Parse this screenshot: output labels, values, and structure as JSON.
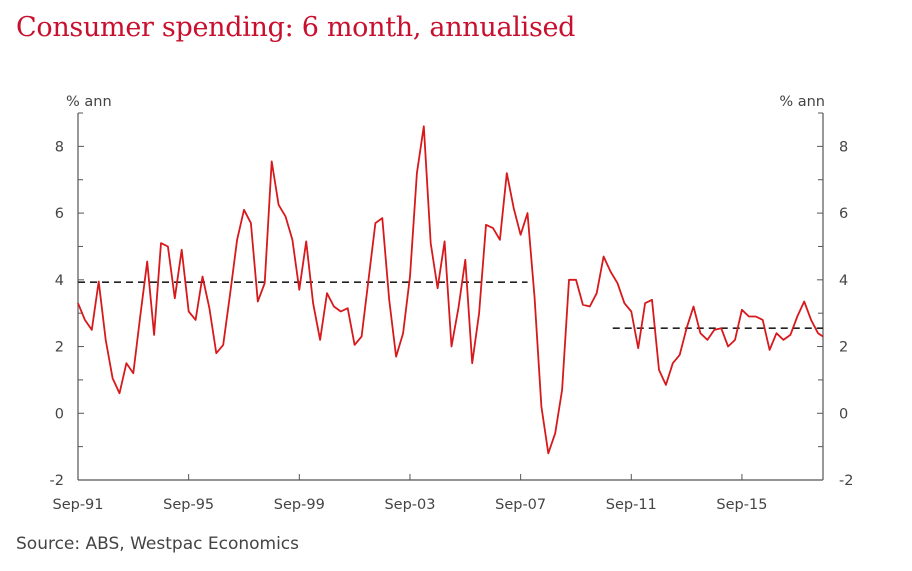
{
  "chart_data": {
    "type": "line",
    "title": "Consumer spending: 6 month, annualised",
    "source": "Source: ABS, Westpac Economics",
    "ylabel_left": "% ann",
    "ylabel_right": "% ann",
    "ylim": [
      -2,
      9
    ],
    "yticks": [
      -2,
      0,
      2,
      4,
      6,
      8
    ],
    "xlim": [
      1991.67,
      2018.6
    ],
    "xticks": [
      {
        "x": 1991.67,
        "label": "Sep-91"
      },
      {
        "x": 1995.67,
        "label": "Sep-95"
      },
      {
        "x": 1999.67,
        "label": "Sep-99"
      },
      {
        "x": 2003.67,
        "label": "Sep-03"
      },
      {
        "x": 2007.67,
        "label": "Sep-07"
      },
      {
        "x": 2011.67,
        "label": "Sep-11"
      },
      {
        "x": 2015.67,
        "label": "Sep-15"
      }
    ],
    "colors": {
      "title": "#c8102e",
      "series": "#d7191c",
      "average": "#222222",
      "axis": "#555555"
    },
    "series": [
      {
        "name": "Consumer spending",
        "points": [
          [
            1991.67,
            3.3
          ],
          [
            1991.92,
            2.8
          ],
          [
            1992.17,
            2.5
          ],
          [
            1992.42,
            3.95
          ],
          [
            1992.67,
            2.2
          ],
          [
            1992.92,
            1.05
          ],
          [
            1993.17,
            0.6
          ],
          [
            1993.42,
            1.5
          ],
          [
            1993.67,
            1.2
          ],
          [
            1993.92,
            2.9
          ],
          [
            1994.17,
            4.55
          ],
          [
            1994.42,
            2.35
          ],
          [
            1994.67,
            5.1
          ],
          [
            1994.92,
            5.0
          ],
          [
            1995.17,
            3.45
          ],
          [
            1995.42,
            4.9
          ],
          [
            1995.67,
            3.05
          ],
          [
            1995.92,
            2.8
          ],
          [
            1996.17,
            4.1
          ],
          [
            1996.42,
            3.15
          ],
          [
            1996.67,
            1.8
          ],
          [
            1996.92,
            2.05
          ],
          [
            1997.17,
            3.6
          ],
          [
            1997.42,
            5.2
          ],
          [
            1997.67,
            6.1
          ],
          [
            1997.92,
            5.7
          ],
          [
            1998.17,
            3.35
          ],
          [
            1998.42,
            3.9
          ],
          [
            1998.67,
            7.55
          ],
          [
            1998.92,
            6.25
          ],
          [
            1999.17,
            5.9
          ],
          [
            1999.42,
            5.2
          ],
          [
            1999.67,
            3.7
          ],
          [
            1999.92,
            5.15
          ],
          [
            2000.17,
            3.3
          ],
          [
            2000.42,
            2.2
          ],
          [
            2000.67,
            3.6
          ],
          [
            2000.92,
            3.2
          ],
          [
            2001.17,
            3.05
          ],
          [
            2001.42,
            3.15
          ],
          [
            2001.67,
            2.05
          ],
          [
            2001.92,
            2.3
          ],
          [
            2002.17,
            4.0
          ],
          [
            2002.42,
            5.7
          ],
          [
            2002.67,
            5.85
          ],
          [
            2002.92,
            3.4
          ],
          [
            2003.17,
            1.7
          ],
          [
            2003.42,
            2.4
          ],
          [
            2003.67,
            4.1
          ],
          [
            2003.92,
            7.2
          ],
          [
            2004.17,
            8.6
          ],
          [
            2004.42,
            5.1
          ],
          [
            2004.67,
            3.75
          ],
          [
            2004.92,
            5.15
          ],
          [
            2005.17,
            2.0
          ],
          [
            2005.42,
            3.15
          ],
          [
            2005.67,
            4.6
          ],
          [
            2005.92,
            1.5
          ],
          [
            2006.17,
            3.0
          ],
          [
            2006.42,
            5.65
          ],
          [
            2006.67,
            5.55
          ],
          [
            2006.92,
            5.2
          ],
          [
            2007.17,
            7.2
          ],
          [
            2007.42,
            6.15
          ],
          [
            2007.67,
            5.35
          ],
          [
            2007.92,
            6.0
          ],
          [
            2008.17,
            3.5
          ],
          [
            2008.42,
            0.2
          ],
          [
            2008.67,
            -1.2
          ],
          [
            2008.92,
            -0.6
          ],
          [
            2009.17,
            0.7
          ],
          [
            2009.42,
            4.0
          ],
          [
            2009.67,
            4.0
          ],
          [
            2009.92,
            3.25
          ],
          [
            2010.17,
            3.2
          ],
          [
            2010.42,
            3.6
          ],
          [
            2010.67,
            4.7
          ],
          [
            2010.92,
            4.25
          ],
          [
            2011.17,
            3.9
          ],
          [
            2011.42,
            3.3
          ],
          [
            2011.67,
            3.05
          ],
          [
            2011.92,
            1.95
          ],
          [
            2012.17,
            3.3
          ],
          [
            2012.42,
            3.4
          ],
          [
            2012.67,
            1.3
          ],
          [
            2012.92,
            0.85
          ],
          [
            2013.17,
            1.5
          ],
          [
            2013.42,
            1.75
          ],
          [
            2013.67,
            2.55
          ],
          [
            2013.92,
            3.2
          ],
          [
            2014.17,
            2.4
          ],
          [
            2014.42,
            2.2
          ],
          [
            2014.67,
            2.5
          ],
          [
            2014.92,
            2.55
          ],
          [
            2015.17,
            2.0
          ],
          [
            2015.42,
            2.2
          ],
          [
            2015.67,
            3.1
          ],
          [
            2015.92,
            2.9
          ],
          [
            2016.17,
            2.9
          ],
          [
            2016.42,
            2.8
          ],
          [
            2016.67,
            1.9
          ],
          [
            2016.92,
            2.4
          ],
          [
            2017.17,
            2.2
          ],
          [
            2017.42,
            2.35
          ],
          [
            2017.67,
            2.9
          ],
          [
            2017.92,
            3.35
          ],
          [
            2018.17,
            2.8
          ],
          [
            2018.42,
            2.4
          ],
          [
            2018.6,
            2.3
          ]
        ]
      }
    ],
    "averages": [
      {
        "x_start": 1991.67,
        "x_end": 2007.92,
        "value": 3.93
      },
      {
        "x_start": 2011.0,
        "x_end": 2018.6,
        "value": 2.55
      }
    ]
  }
}
